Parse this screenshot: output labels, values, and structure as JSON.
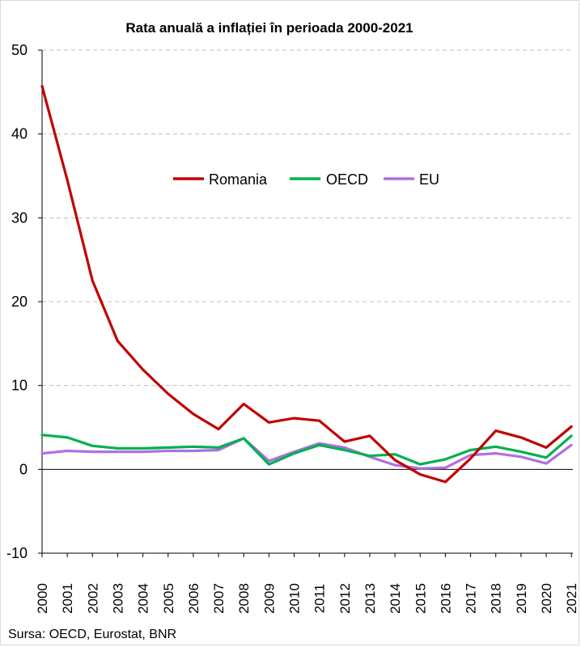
{
  "chart_data": {
    "type": "line",
    "title": "Rata anuală a inflației în perioada 2000-2021",
    "xlabel": "",
    "ylabel": "",
    "ylim": [
      -10,
      50
    ],
    "yticks": [
      -10,
      0,
      10,
      20,
      30,
      40,
      50
    ],
    "grid": true,
    "legend_position": "center",
    "x": [
      "2000",
      "2001",
      "2002",
      "2003",
      "2004",
      "2005",
      "2006",
      "2007",
      "2008",
      "2009",
      "2010",
      "2011",
      "2012",
      "2013",
      "2014",
      "2015",
      "2016",
      "2017",
      "2018",
      "2019",
      "2020",
      "2021"
    ],
    "series": [
      {
        "name": "Romania",
        "color": "#c00000",
        "values": [
          45.7,
          34.5,
          22.5,
          15.3,
          11.9,
          9.0,
          6.6,
          4.8,
          7.8,
          5.6,
          6.1,
          5.8,
          3.3,
          4.0,
          1.1,
          -0.6,
          -1.5,
          1.3,
          4.6,
          3.8,
          2.6,
          5.1
        ]
      },
      {
        "name": "OECD",
        "color": "#00b050",
        "values": [
          4.1,
          3.8,
          2.8,
          2.5,
          2.5,
          2.6,
          2.7,
          2.6,
          3.7,
          0.6,
          1.9,
          2.9,
          2.3,
          1.6,
          1.8,
          0.6,
          1.2,
          2.3,
          2.7,
          2.1,
          1.4,
          4.0
        ]
      },
      {
        "name": "EU",
        "color": "#b070e0",
        "values": [
          1.9,
          2.2,
          2.1,
          2.1,
          2.1,
          2.2,
          2.2,
          2.3,
          3.7,
          1.0,
          2.1,
          3.1,
          2.6,
          1.5,
          0.5,
          0.1,
          0.2,
          1.7,
          1.9,
          1.5,
          0.7,
          2.9
        ]
      }
    ]
  },
  "source_text": "Sursa: OECD, Eurostat, BNR"
}
